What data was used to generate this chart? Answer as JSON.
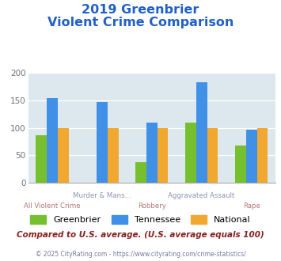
{
  "title_line1": "2019 Greenbrier",
  "title_line2": "Violent Crime Comparison",
  "categories": [
    "All Violent Crime",
    "Murder & Mans...",
    "Robbery",
    "Aggravated Assault",
    "Rape"
  ],
  "categories_row1": [
    "",
    "Murder & Mans...",
    "",
    "Aggravated Assault",
    ""
  ],
  "categories_row2": [
    "All Violent Crime",
    "",
    "Robbery",
    "",
    "Rape"
  ],
  "greenbrier": [
    87,
    0,
    37,
    110,
    68
  ],
  "tennessee": [
    155,
    147,
    110,
    183,
    97
  ],
  "national": [
    100,
    100,
    100,
    100,
    100
  ],
  "colors": {
    "greenbrier": "#76c030",
    "tennessee": "#4090e8",
    "national": "#f0a830"
  },
  "ylim": [
    0,
    200
  ],
  "yticks": [
    0,
    50,
    100,
    150,
    200
  ],
  "title_color": "#2060c8",
  "plot_bg": "#dce8ee",
  "xlabel_row1_color": "#9090b8",
  "xlabel_row2_color": "#b07878",
  "footer_text": "Compared to U.S. average. (U.S. average equals 100)",
  "copyright_text": "© 2025 CityRating.com - https://www.cityrating.com/crime-statistics/",
  "footer_color": "#882020",
  "copyright_color": "#7878a0",
  "legend_labels": [
    "Greenbrier",
    "Tennessee",
    "National"
  ]
}
